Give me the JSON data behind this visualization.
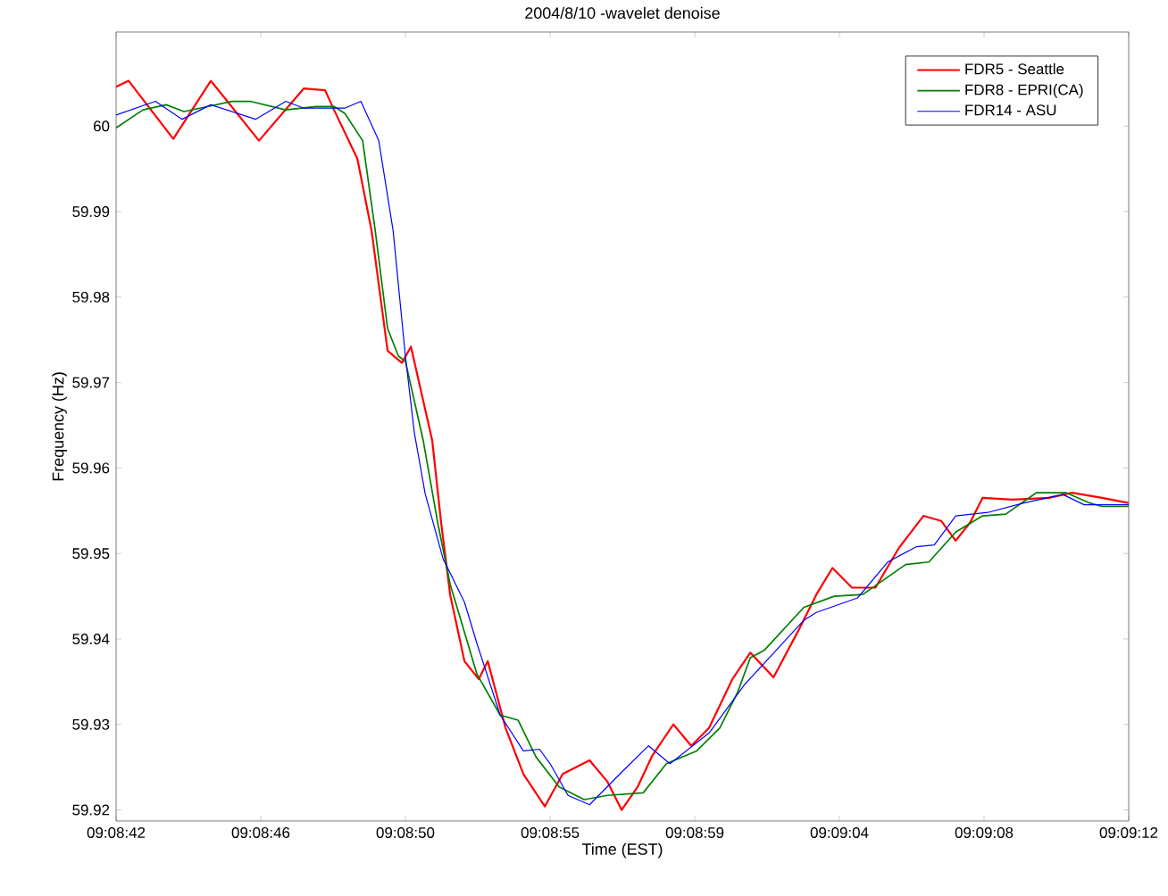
{
  "chart_data": {
    "type": "line",
    "title": "2004/8/10 -wavelet denoise",
    "xlabel": "Time (EST)",
    "ylabel": "Frequency (Hz)",
    "xlim": [
      9.144889,
      9.153444
    ],
    "ylim": [
      59.9187,
      60.011
    ],
    "xticks": [
      {
        "value": 9.144889,
        "label": "09:08:42"
      },
      {
        "value": 9.146111,
        "label": "09:08:46"
      },
      {
        "value": 9.147333,
        "label": "09:08:50"
      },
      {
        "value": 9.148556,
        "label": "09:08:55"
      },
      {
        "value": 9.149778,
        "label": "09:08:59"
      },
      {
        "value": 9.151,
        "label": "09:09:04"
      },
      {
        "value": 9.152222,
        "label": "09:09:08"
      },
      {
        "value": 9.153444,
        "label": "09:09:12"
      }
    ],
    "yticks": [
      59.92,
      59.93,
      59.94,
      59.95,
      59.96,
      59.97,
      59.98,
      59.99,
      60
    ],
    "grid": false,
    "legend": "top right",
    "line_style": "solid",
    "marker": "none",
    "series": [
      {
        "name": "FDR5 - Seattle",
        "color": "#ff0000",
        "x": [
          9.144889,
          9.144995,
          9.145372,
          9.145689,
          9.146096,
          9.146474,
          9.146655,
          9.14673,
          9.146927,
          9.147047,
          9.147183,
          9.147304,
          9.14738,
          9.14756,
          9.147635,
          9.147711,
          9.147832,
          9.147953,
          9.148029,
          9.148179,
          9.14833,
          9.148511,
          9.148662,
          9.148889,
          9.14904,
          9.14916,
          9.149295,
          9.149417,
          9.149597,
          9.149748,
          9.149899,
          9.150096,
          9.150247,
          9.150443,
          9.150654,
          9.150805,
          9.150941,
          9.151106,
          9.151304,
          9.1515,
          9.15171,
          9.151861,
          9.151982,
          9.152103,
          9.152209,
          9.152466,
          9.152768,
          9.152964,
          9.15322,
          9.153444
        ],
        "values": [
          60.0046,
          60.0053,
          59.9985,
          60.0053,
          59.9983,
          60.0044,
          60.0042,
          60.0019,
          59.9962,
          59.9878,
          59.9737,
          59.9723,
          59.9742,
          59.9632,
          59.9536,
          59.9452,
          59.9374,
          59.9353,
          59.9374,
          59.9296,
          59.9242,
          59.9204,
          59.9242,
          59.9258,
          59.9233,
          59.92,
          59.9227,
          59.9263,
          59.93,
          59.9275,
          59.9296,
          59.9353,
          59.9384,
          59.9355,
          59.941,
          59.9452,
          59.9483,
          59.946,
          59.946,
          59.9506,
          59.9544,
          59.9538,
          59.9515,
          59.9536,
          59.9565,
          59.9563,
          59.9565,
          59.9571,
          59.9565,
          59.9559
        ]
      },
      {
        "name": "FDR8 - EPRI(CA)",
        "color": "#008000",
        "x": [
          9.144889,
          9.145116,
          9.145312,
          9.145463,
          9.14587,
          9.146021,
          9.146323,
          9.146579,
          9.14673,
          9.146821,
          9.146972,
          9.147078,
          9.147183,
          9.147274,
          9.147333,
          9.147484,
          9.147606,
          9.147711,
          9.147937,
          9.148134,
          9.148285,
          9.148436,
          9.148632,
          9.148843,
          9.14904,
          9.149342,
          9.149538,
          9.149794,
          9.14999,
          9.150141,
          9.150247,
          9.150367,
          9.1507,
          9.150956,
          9.151197,
          9.151559,
          9.151756,
          9.151982,
          9.152209,
          9.152405,
          9.152662,
          9.152918,
          9.153115,
          9.153219,
          9.153444
        ],
        "values": [
          59.9998,
          60.0019,
          60.0025,
          60.0017,
          60.0029,
          60.0029,
          60.0019,
          60.0023,
          60.0023,
          60.0015,
          59.9983,
          59.9878,
          59.9763,
          59.9731,
          59.9725,
          59.9632,
          59.9536,
          59.9464,
          59.9359,
          59.9311,
          59.9305,
          59.9262,
          59.9227,
          59.9212,
          59.9217,
          59.922,
          59.9254,
          59.9269,
          59.9296,
          59.9338,
          59.9378,
          59.9387,
          59.9437,
          59.945,
          59.9452,
          59.9487,
          59.949,
          59.9525,
          59.9544,
          59.9546,
          59.9571,
          59.9571,
          59.9559,
          59.9555,
          59.9555
        ]
      },
      {
        "name": "FDR14 - ASU",
        "color": "#0000ff",
        "x": [
          9.144889,
          9.145221,
          9.145447,
          9.145689,
          9.146067,
          9.146323,
          9.146474,
          9.146821,
          9.146957,
          9.147108,
          9.147229,
          9.147333,
          9.147409,
          9.1475,
          9.147651,
          9.147832,
          9.147937,
          9.148134,
          9.14833,
          9.148466,
          9.148556,
          9.148707,
          9.148889,
          9.149145,
          9.149387,
          9.149568,
          9.149899,
          9.150201,
          9.1507,
          9.150805,
          9.151153,
          9.151408,
          9.151651,
          9.151802,
          9.151982,
          9.152254,
          9.152556,
          9.152888,
          9.153068,
          9.153444
        ],
        "values": [
          60.0013,
          60.0029,
          60.0008,
          60.0025,
          60.0008,
          60.0029,
          60.0021,
          60.0021,
          60.0029,
          59.9983,
          59.9878,
          59.9731,
          59.9641,
          59.957,
          59.9494,
          59.9443,
          59.9395,
          59.9311,
          59.9269,
          59.9271,
          59.9254,
          59.9217,
          59.9206,
          59.9242,
          59.9275,
          59.9254,
          59.929,
          59.9347,
          59.9422,
          59.9431,
          59.9448,
          59.949,
          59.9508,
          59.951,
          59.9544,
          59.9548,
          59.9559,
          59.9569,
          59.9557,
          59.9557
        ]
      }
    ]
  }
}
